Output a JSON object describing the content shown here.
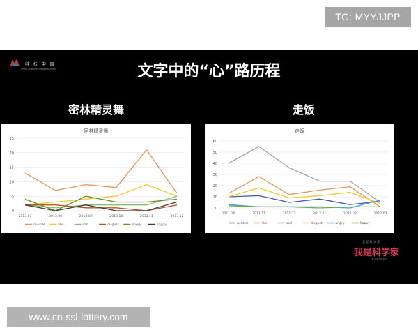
{
  "corner_tag": "TG: MYYJJPP",
  "slide": {
    "title": "文字中的“心”路历程",
    "logo_left": {
      "cn": "科 技 中 国",
      "en": "CHINA SCIENCE COMMUNICATION"
    },
    "logo_right": {
      "small": "我 是 科 学 家",
      "big": "我是科学家",
      "en": "I'M A SCIENTIST"
    }
  },
  "watermark": "www.cn-ssl-lottery.com",
  "chart_data": [
    {
      "type": "line",
      "heading": "密林精灵舞",
      "title": "密林精灵舞",
      "categories": [
        "2013.07",
        "2013.08",
        "2013.09",
        "2013.10",
        "2013.11",
        "2013.12"
      ],
      "ylim": [
        0,
        25
      ],
      "yticks": [
        0,
        5,
        10,
        15,
        20,
        25
      ],
      "grid": true,
      "legend": "bottom",
      "series": [
        {
          "name": "neutral",
          "color": "#e8935a",
          "values": [
            13,
            7,
            9,
            8,
            21,
            6
          ]
        },
        {
          "name": "like",
          "color": "#f4c92c",
          "values": [
            2,
            3,
            4,
            5,
            9,
            5
          ]
        },
        {
          "name": "sad",
          "color": "#82c46c",
          "values": [
            2,
            1,
            2,
            2,
            2,
            5
          ]
        },
        {
          "name": "disgust",
          "color": "#c0512a",
          "values": [
            2,
            2,
            1,
            1,
            0,
            2
          ]
        },
        {
          "name": "angry",
          "color": "#6b8e23",
          "values": [
            4,
            0,
            5,
            3,
            3,
            4
          ]
        },
        {
          "name": "happy",
          "color": "#404040",
          "values": [
            2,
            0,
            2,
            0,
            0,
            3
          ]
        }
      ]
    },
    {
      "type": "line",
      "heading": "走饭",
      "title": "走饭",
      "categories": [
        "2011.10",
        "2011.11",
        "2011.12",
        "2012.01",
        "2012.02",
        "2012.03"
      ],
      "ylim": [
        0,
        60
      ],
      "yticks": [
        0,
        10,
        20,
        30,
        40,
        50,
        60
      ],
      "grid": true,
      "legend": "bottom",
      "series": [
        {
          "name": "neutral",
          "color": "#3f5fa8",
          "values": [
            10,
            11,
            5,
            8,
            3,
            6
          ]
        },
        {
          "name": "like",
          "color": "#e8935a",
          "values": [
            13,
            28,
            12,
            16,
            19,
            1
          ]
        },
        {
          "name": "sad",
          "color": "#a5a5a5",
          "values": [
            40,
            55,
            36,
            24,
            24,
            5
          ]
        },
        {
          "name": "disgust",
          "color": "#f4c92c",
          "values": [
            10,
            18,
            9,
            11,
            14,
            4
          ]
        },
        {
          "name": "angry",
          "color": "#4aa3d8",
          "values": [
            3,
            1,
            1,
            1,
            0,
            7
          ]
        },
        {
          "name": "happy",
          "color": "#70ad47",
          "values": [
            2,
            1,
            1,
            0,
            1,
            1
          ]
        }
      ]
    }
  ]
}
